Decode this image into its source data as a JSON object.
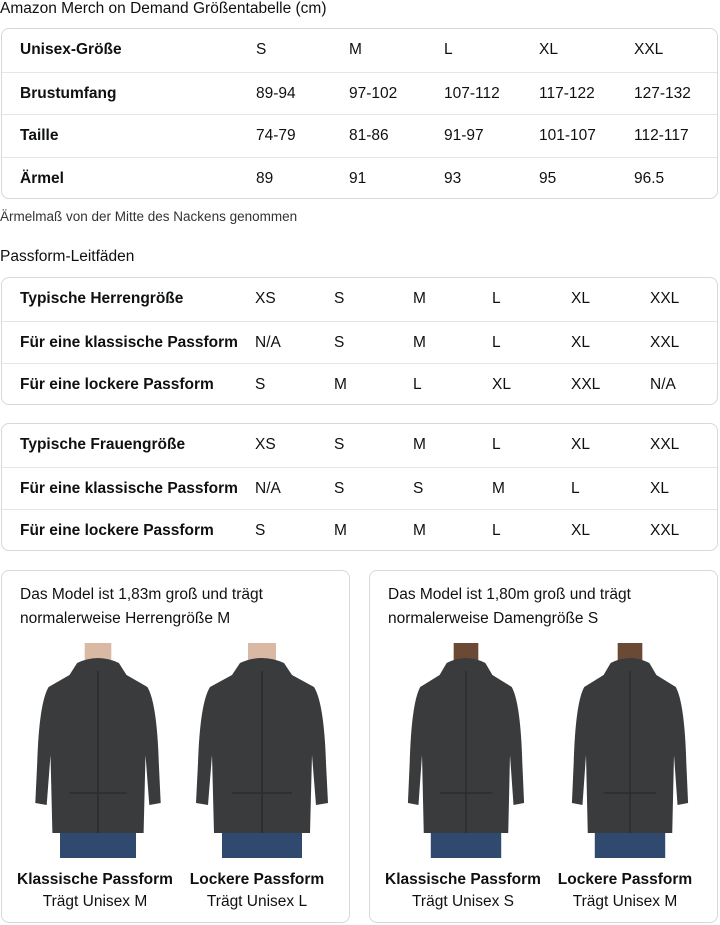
{
  "size_chart": {
    "title": "Amazon Merch on Demand Größentabelle (cm)",
    "rows": [
      [
        "Unisex-Größe",
        "S",
        "M",
        "L",
        "XL",
        "XXL"
      ],
      [
        "Brustumfang",
        "89-94",
        "97-102",
        "107-112",
        "117-122",
        "127-132"
      ],
      [
        "Taille",
        "74-79",
        "81-86",
        "91-97",
        "101-107",
        "112-117"
      ],
      [
        "Ärmel",
        "89",
        "91",
        "93",
        "95",
        "96.5"
      ]
    ],
    "note": "Ärmelmaß von der Mitte des Nackens genommen"
  },
  "fit_guide": {
    "title": "Passform-Leitfäden",
    "men": [
      [
        "Typische Herrengröße",
        "XS",
        "S",
        "M",
        "L",
        "XL",
        "XXL"
      ],
      [
        "Für eine klassische Passform",
        "N/A",
        "S",
        "M",
        "L",
        "XL",
        "XXL"
      ],
      [
        "Für eine lockere Passform",
        "S",
        "M",
        "L",
        "XL",
        "XXL",
        "N/A"
      ]
    ],
    "women": [
      [
        "Typische Frauengröße",
        "XS",
        "S",
        "M",
        "L",
        "XL",
        "XXL"
      ],
      [
        "Für eine klassische Passform",
        "N/A",
        "S",
        "S",
        "M",
        "L",
        "XL"
      ],
      [
        "Für eine lockere Passform",
        "S",
        "M",
        "M",
        "L",
        "XL",
        "XXL"
      ]
    ]
  },
  "models": [
    {
      "caption_line1": "Das Model ist 1,83m groß und trägt",
      "caption_line2": "normalerweise Herrengröße M",
      "figures": [
        {
          "fit": "Klassische Passform",
          "size": "Trägt Unisex M"
        },
        {
          "fit": "Lockere Passform",
          "size": "Trägt Unisex L"
        }
      ]
    },
    {
      "caption_line1": "Das Model ist 1,80m groß und trägt",
      "caption_line2": "normalerweise Damengröße S",
      "figures": [
        {
          "fit": "Klassische Passform",
          "size": "Trägt Unisex S"
        },
        {
          "fit": "Lockere Passform",
          "size": "Trägt Unisex M"
        }
      ]
    }
  ],
  "colors": {
    "text": "#0f1111",
    "border": "#d5d9d9",
    "hoodie": "#3a3b3d",
    "jeans": "#2f4a6e",
    "skin_light": "#d9b9a3",
    "skin_dark": "#6b4a35"
  }
}
